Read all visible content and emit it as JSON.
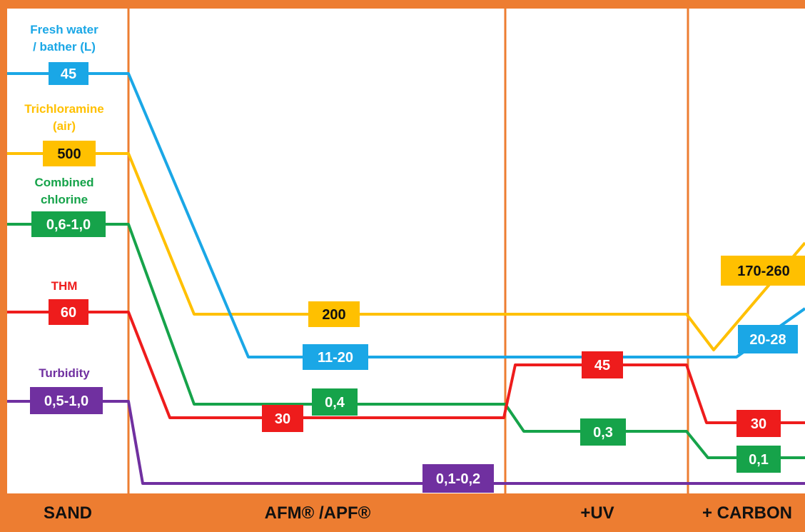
{
  "stages": [
    "SAND",
    "AFM® /APF®",
    "+UV",
    "+ CARBON"
  ],
  "series": [
    {
      "key": "fresh_water",
      "title_lines": [
        "Fresh water",
        "/ bather (L)"
      ],
      "color": "#1aa7e6",
      "labels": [
        "45",
        "11-20",
        "20-28"
      ]
    },
    {
      "key": "trichloramine",
      "title_lines": [
        "Trichloramine",
        "(air)"
      ],
      "color": "#ffc000",
      "labels": [
        "500",
        "200",
        "170-260"
      ]
    },
    {
      "key": "combined_chlorine",
      "title_lines": [
        "Combined",
        "chlorine"
      ],
      "color": "#16a34a",
      "labels": [
        "0,6-1,0",
        "0,4",
        "0,3",
        "0,1"
      ]
    },
    {
      "key": "thm",
      "title_lines": [
        "THM"
      ],
      "color": "#ee1c1c",
      "labels": [
        "60",
        "30",
        "45",
        "30"
      ]
    },
    {
      "key": "turbidity",
      "title_lines": [
        "Turbidity"
      ],
      "color": "#7030a0",
      "labels": [
        "0,5-1,0",
        "0,1-0,2"
      ]
    }
  ],
  "colors": {
    "frame": "#ed7d31",
    "band": "#ed7d31",
    "panel": "#ffffff"
  }
}
